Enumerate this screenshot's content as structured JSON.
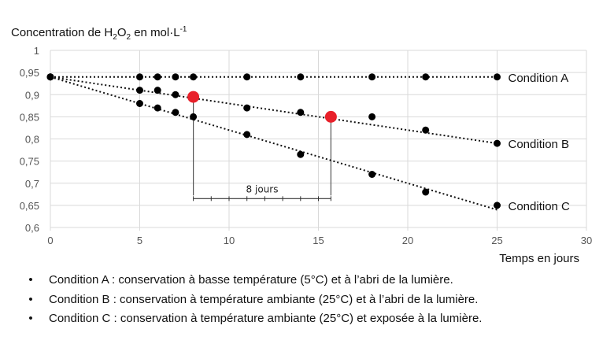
{
  "chart_data": {
    "type": "scatter",
    "ylabel_prefix": "Concentration de H",
    "ylabel_sub": "2",
    "ylabel_mid": "O",
    "ylabel_sub2": "2",
    "ylabel_suffix": " en mol·L",
    "ylabel_sup": "-1",
    "xlabel": "Temps en jours",
    "xlim": [
      0,
      30
    ],
    "ylim": [
      0.6,
      1
    ],
    "xticks": [
      0,
      5,
      10,
      15,
      20,
      25,
      30
    ],
    "yticks": [
      0.6,
      0.65,
      0.7,
      0.75,
      0.8,
      0.85,
      0.9,
      0.95,
      1
    ],
    "ytick_labels": [
      "0,6",
      "0,65",
      "0,7",
      "0,75",
      "0,8",
      "0,85",
      "0,9",
      "0,95",
      "1"
    ],
    "grid": true,
    "series": [
      {
        "name": "Condition A",
        "x": [
          0,
          5,
          6,
          7,
          8,
          11,
          14,
          18,
          21,
          25
        ],
        "y": [
          0.94,
          0.94,
          0.94,
          0.94,
          0.94,
          0.94,
          0.94,
          0.94,
          0.94,
          0.94
        ],
        "trend": [
          [
            0,
            0.94
          ],
          [
            25,
            0.94
          ]
        ]
      },
      {
        "name": "Condition B",
        "x": [
          0,
          5,
          6,
          7,
          11,
          14,
          18,
          21,
          25
        ],
        "y": [
          0.94,
          0.91,
          0.91,
          0.9,
          0.87,
          0.86,
          0.85,
          0.82,
          0.79
        ],
        "trend": [
          [
            0,
            0.94
          ],
          [
            25,
            0.79
          ]
        ]
      },
      {
        "name": "Condition C",
        "x": [
          0,
          5,
          6,
          7,
          8,
          11,
          14,
          18,
          21,
          25
        ],
        "y": [
          0.94,
          0.88,
          0.87,
          0.86,
          0.85,
          0.81,
          0.765,
          0.72,
          0.68,
          0.65
        ],
        "trend": [
          [
            0,
            0.94
          ],
          [
            25,
            0.64
          ]
        ]
      }
    ],
    "highlight_points": [
      {
        "x": 8,
        "y": 0.895
      },
      {
        "x": 15.7,
        "y": 0.85
      }
    ],
    "annotation": {
      "text": "8 jours",
      "from": 8,
      "to": 15.7,
      "y": 0.667
    },
    "colors": {
      "points": "#000000",
      "highlight": "#e8202a",
      "grid": "#d9d9d9"
    }
  },
  "legend": [
    "Condition A : conservation à basse température (5°C) et à l’abri de la lumière.",
    "Condition B : conservation à température ambiante (25°C) et à l’abri de la lumière.",
    "Condition C : conservation à température ambiante (25°C) et exposée à la lumière."
  ],
  "bullet": "•"
}
